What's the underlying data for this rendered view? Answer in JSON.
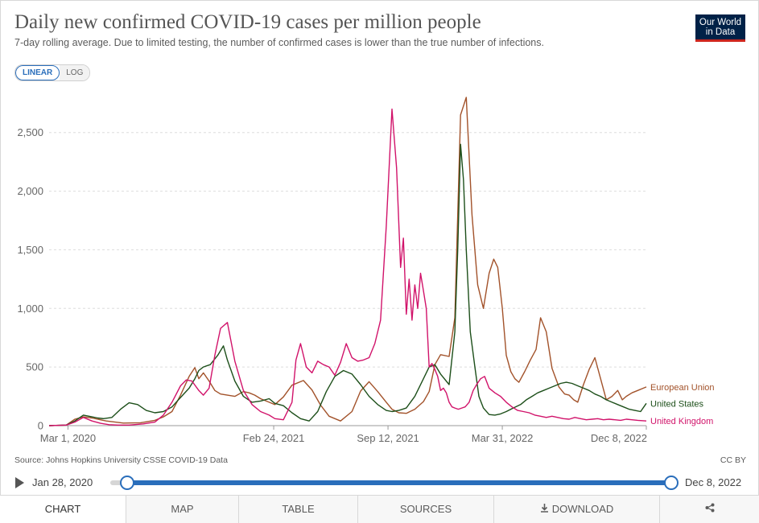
{
  "header": {
    "title": "Daily new confirmed COVID-19 cases per million people",
    "subtitle": "7-day rolling average. Due to limited testing, the number of confirmed cases is lower than the true number of infections.",
    "logo_line1": "Our World",
    "logo_line2": "in Data"
  },
  "scale_toggle": {
    "linear": "LINEAR",
    "log": "LOG",
    "selected": "LINEAR"
  },
  "footer": {
    "source": "Source: Johns Hopkins University CSSE COVID-19 Data",
    "license": "CC BY"
  },
  "timeline": {
    "start_label": "Jan 28, 2020",
    "end_label": "Dec 8, 2022",
    "start_value": 0,
    "end_value": 1
  },
  "tabs": [
    {
      "label": "CHART",
      "active": true
    },
    {
      "label": "MAP",
      "active": false
    },
    {
      "label": "TABLE",
      "active": false
    },
    {
      "label": "SOURCES",
      "active": false
    },
    {
      "label": "DOWNLOAD",
      "active": false
    },
    {
      "label": "",
      "icon": "share-icon",
      "active": false
    }
  ],
  "colors": {
    "eu": "#a2522a",
    "us": "#1d4f1a",
    "uk": "#d1136a",
    "accent": "#2a6ebb"
  },
  "chart_data": {
    "type": "line",
    "title": "Daily new confirmed COVID-19 cases per million people",
    "ylabel": "",
    "xlabel": "",
    "ylim": [
      0,
      2800
    ],
    "xlim": [
      0,
      1045
    ],
    "x_unit": "days since Jan 28, 2020",
    "yticks": [
      0,
      500,
      1000,
      1500,
      2000,
      2500
    ],
    "ytick_labels": [
      "0",
      "500",
      "1,000",
      "1,500",
      "2,000",
      "2,500"
    ],
    "xticks": [
      33,
      393,
      593,
      793,
      1045
    ],
    "xtick_labels": [
      "Mar 1, 2020",
      "Feb 24, 2021",
      "Sep 12, 2021",
      "Mar 31, 2022",
      "Dec 8, 2022"
    ],
    "grid": true,
    "series": [
      {
        "name": "European Union",
        "color": "#a2522a",
        "x": [
          0,
          30,
          45,
          60,
          75,
          100,
          130,
          160,
          185,
          200,
          215,
          230,
          245,
          255,
          262,
          270,
          280,
          290,
          300,
          312,
          325,
          340,
          350,
          360,
          370,
          385,
          395,
          410,
          425,
          445,
          460,
          475,
          490,
          510,
          530,
          545,
          560,
          575,
          590,
          600,
          612,
          625,
          640,
          655,
          665,
          675,
          685,
          700,
          710,
          720,
          730,
          740,
          750,
          760,
          770,
          778,
          785,
          793,
          800,
          808,
          815,
          822,
          832,
          842,
          852,
          860,
          870,
          880,
          892,
          902,
          910,
          918,
          925,
          935,
          945,
          955,
          965,
          975,
          985,
          995,
          1003,
          1010,
          1020,
          1030,
          1040,
          1045
        ],
        "y": [
          0,
          5,
          55,
          75,
          65,
          40,
          22,
          25,
          45,
          75,
          120,
          260,
          420,
          495,
          400,
          450,
          380,
          300,
          270,
          260,
          250,
          290,
          280,
          260,
          230,
          200,
          180,
          245,
          345,
          385,
          305,
          175,
          80,
          40,
          120,
          295,
          375,
          290,
          200,
          140,
          110,
          105,
          140,
          205,
          290,
          520,
          605,
          590,
          920,
          2650,
          2800,
          1800,
          1200,
          1000,
          1300,
          1420,
          1350,
          1000,
          600,
          460,
          400,
          370,
          460,
          560,
          650,
          920,
          800,
          490,
          330,
          270,
          260,
          220,
          200,
          350,
          480,
          580,
          400,
          220,
          250,
          300,
          220,
          250,
          280,
          300,
          320,
          330
        ]
      },
      {
        "name": "United States",
        "color": "#1d4f1a",
        "x": [
          0,
          30,
          45,
          60,
          75,
          85,
          95,
          110,
          125,
          140,
          155,
          170,
          185,
          200,
          215,
          230,
          245,
          255,
          262,
          270,
          282,
          295,
          305,
          312,
          325,
          340,
          355,
          370,
          385,
          395,
          410,
          425,
          440,
          455,
          470,
          485,
          500,
          515,
          530,
          545,
          560,
          575,
          590,
          600,
          612,
          625,
          640,
          655,
          665,
          675,
          685,
          700,
          710,
          715,
          720,
          725,
          730,
          737,
          745,
          752,
          760,
          770,
          780,
          790,
          800,
          812,
          825,
          835,
          845,
          855,
          865,
          875,
          885,
          895,
          905,
          915,
          925,
          935,
          945,
          955,
          965,
          975,
          985,
          995,
          1005,
          1015,
          1025,
          1035,
          1045
        ],
        "y": [
          0,
          5,
          40,
          90,
          75,
          65,
          60,
          70,
          140,
          195,
          180,
          130,
          110,
          120,
          160,
          240,
          320,
          400,
          470,
          500,
          520,
          600,
          680,
          560,
          380,
          250,
          200,
          210,
          230,
          190,
          170,
          110,
          60,
          40,
          120,
          290,
          420,
          470,
          440,
          350,
          250,
          180,
          130,
          120,
          130,
          150,
          250,
          400,
          500,
          520,
          440,
          350,
          800,
          1500,
          2400,
          2100,
          1500,
          800,
          500,
          250,
          150,
          95,
          90,
          100,
          120,
          150,
          180,
          220,
          250,
          280,
          300,
          320,
          340,
          360,
          370,
          360,
          340,
          320,
          300,
          270,
          250,
          220,
          200,
          180,
          160,
          140,
          130,
          120,
          190
        ]
      },
      {
        "name": "United Kingdom",
        "color": "#d1136a",
        "x": [
          0,
          30,
          45,
          60,
          75,
          90,
          105,
          120,
          140,
          165,
          185,
          200,
          215,
          230,
          240,
          250,
          262,
          270,
          280,
          290,
          300,
          312,
          325,
          340,
          355,
          370,
          385,
          395,
          410,
          425,
          432,
          440,
          450,
          460,
          470,
          480,
          490,
          500,
          510,
          520,
          530,
          540,
          550,
          560,
          570,
          580,
          590,
          600,
          608,
          615,
          620,
          625,
          630,
          635,
          640,
          645,
          650,
          655,
          660,
          665,
          670,
          675,
          680,
          685,
          690,
          695,
          700,
          705,
          710,
          716,
          722,
          728,
          735,
          742,
          748,
          755,
          762,
          770,
          780,
          790,
          800,
          810,
          820,
          830,
          840,
          850,
          860,
          870,
          880,
          890,
          900,
          910,
          920,
          930,
          940,
          950,
          960,
          970,
          980,
          990,
          1000,
          1010,
          1020,
          1030,
          1045
        ],
        "y": [
          0,
          5,
          30,
          70,
          40,
          20,
          8,
          5,
          5,
          15,
          30,
          90,
          200,
          340,
          390,
          380,
          300,
          260,
          320,
          600,
          830,
          880,
          550,
          300,
          180,
          120,
          90,
          60,
          50,
          200,
          560,
          700,
          500,
          450,
          550,
          520,
          500,
          430,
          540,
          700,
          580,
          550,
          560,
          580,
          700,
          900,
          1700,
          2700,
          2200,
          1350,
          1600,
          950,
          1250,
          900,
          1200,
          1000,
          1300,
          1150,
          1000,
          500,
          530,
          480,
          420,
          300,
          320,
          280,
          200,
          160,
          150,
          140,
          150,
          160,
          200,
          300,
          350,
          400,
          420,
          320,
          280,
          250,
          200,
          160,
          130,
          120,
          110,
          90,
          80,
          70,
          80,
          70,
          60,
          55,
          70,
          60,
          50,
          55,
          60,
          50,
          55,
          50,
          45,
          55,
          50,
          45,
          40
        ]
      }
    ]
  }
}
